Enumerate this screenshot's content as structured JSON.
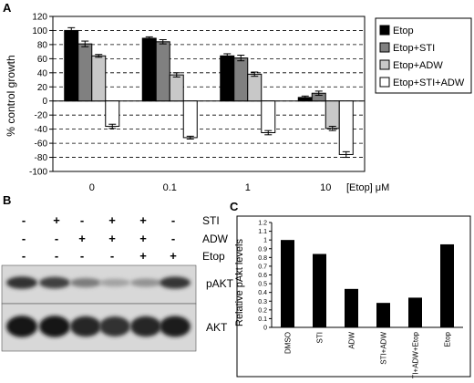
{
  "panels": {
    "a": "A",
    "b": "B",
    "c": "C"
  },
  "chart_data": [
    {
      "type": "bar",
      "panel": "A",
      "ylabel": "% control growth",
      "xlabel": "[Etop] μM",
      "categories": [
        "0",
        "0.1",
        "1",
        "10"
      ],
      "ylim": [
        -100,
        120
      ],
      "yticks": [
        -100,
        -80,
        -60,
        -40,
        -20,
        0,
        20,
        40,
        60,
        80,
        100,
        120
      ],
      "grid": "dashed horizontal",
      "legend_position": "right",
      "series": [
        {
          "name": "Etop",
          "color": "#000000",
          "values": [
            100,
            89,
            64,
            5
          ],
          "errors": [
            4,
            2,
            3,
            2
          ]
        },
        {
          "name": "Etop+STI",
          "color": "#808080",
          "values": [
            81,
            84,
            61,
            11
          ],
          "errors": [
            4,
            3,
            4,
            3
          ]
        },
        {
          "name": "Etop+ADW",
          "color": "#c8c8c8",
          "values": [
            64,
            37,
            38,
            -39
          ],
          "errors": [
            2,
            3,
            3,
            3
          ]
        },
        {
          "name": "Etop+STI+ADW",
          "color": "#ffffff",
          "values": [
            -36,
            -52,
            -45,
            -76
          ],
          "errors": [
            3,
            2,
            3,
            4
          ]
        }
      ]
    },
    {
      "type": "bar",
      "panel": "C",
      "ylabel": "Relative pAkt levels",
      "categories": [
        "DMSO",
        "STI",
        "ADW",
        "STI+ADW",
        "STI+ADW+Etop",
        "Etop"
      ],
      "values": [
        1.0,
        0.84,
        0.44,
        0.28,
        0.34,
        0.95
      ],
      "ylim": [
        0,
        1.2
      ],
      "yticks": [
        "0",
        "0.1",
        "0.2",
        "0.3",
        "0.4",
        "0.5",
        "0.6",
        "0.7",
        "0.8",
        "0.9",
        "1",
        "1.1",
        "1.2"
      ],
      "grid": "none",
      "color": "#000000"
    }
  ],
  "blot": {
    "conditions": [
      {
        "label": "STI",
        "values": [
          "-",
          "+",
          "-",
          "+",
          "+",
          "-"
        ]
      },
      {
        "label": "ADW",
        "values": [
          "-",
          "-",
          "+",
          "+",
          "+",
          "-"
        ]
      },
      {
        "label": "Etop",
        "values": [
          "-",
          "-",
          "-",
          "-",
          "+",
          "+"
        ]
      }
    ],
    "bands": [
      {
        "label": "pAKT",
        "intensity": [
          0.8,
          0.72,
          0.4,
          0.2,
          0.28,
          0.78
        ]
      },
      {
        "label": "AKT",
        "intensity": [
          0.95,
          0.95,
          0.85,
          0.8,
          0.85,
          0.9
        ]
      }
    ]
  }
}
